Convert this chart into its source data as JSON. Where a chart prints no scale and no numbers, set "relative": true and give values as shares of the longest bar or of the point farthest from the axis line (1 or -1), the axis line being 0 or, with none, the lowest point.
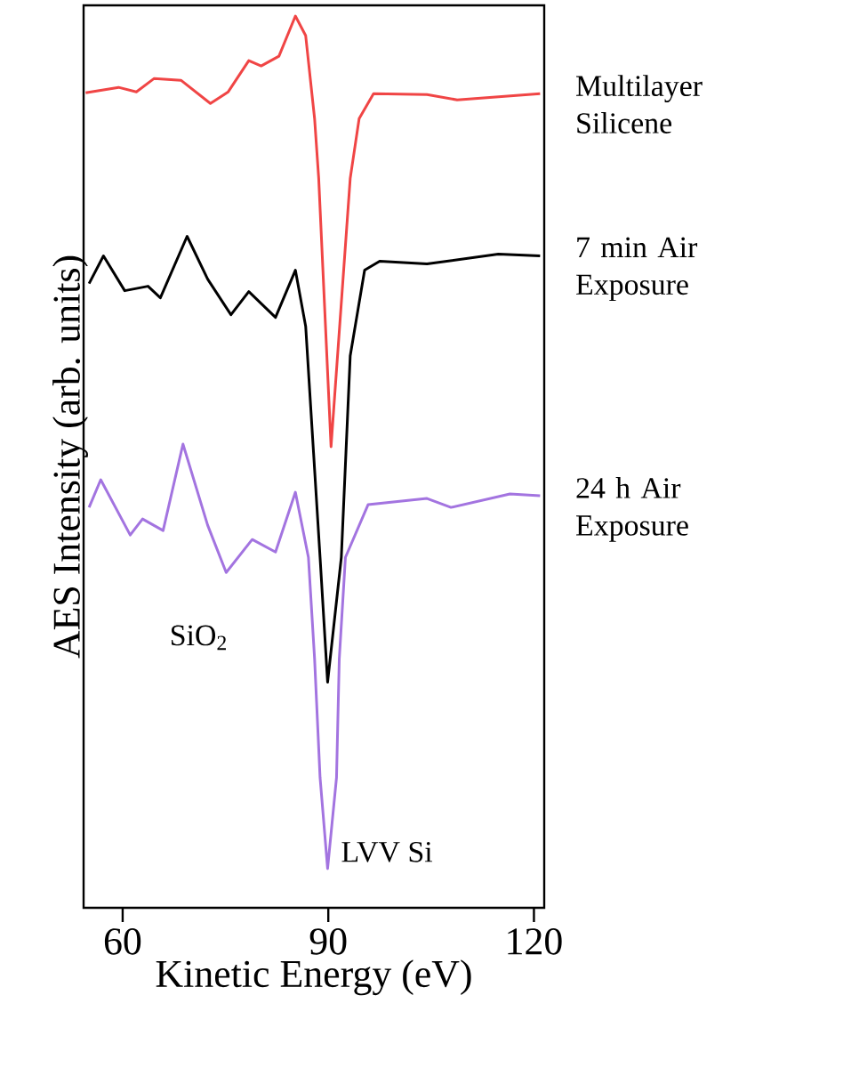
{
  "chart_data": {
    "type": "line",
    "relative": true,
    "xlabel": "Kinetic Energy (eV)",
    "ylabel": "AES Intensity (arb. units)",
    "xlim": [
      54.3,
      121.5
    ],
    "xticks": [
      60,
      90,
      120
    ],
    "series": [
      {
        "name": "Multilayer Silicene",
        "color": "#f04545",
        "x": [
          54.6,
          59.4,
          62.0,
          64.6,
          68.5,
          72.8,
          75.4,
          78.4,
          80.2,
          82.8,
          85.2,
          86.7,
          88.0,
          88.6,
          90.4,
          93.2,
          94.5,
          96.6,
          104.4,
          108.8,
          120.9
        ],
        "values": [
          0.914,
          0.92,
          0.915,
          0.93,
          0.928,
          0.902,
          0.915,
          0.95,
          0.944,
          0.955,
          1.0,
          0.978,
          0.885,
          0.818,
          0.517,
          0.818,
          0.885,
          0.913,
          0.912,
          0.906,
          0.913
        ]
      },
      {
        "name": "7 min Air Exposure",
        "color": "#000000",
        "x": [
          55.1,
          57.2,
          60.3,
          63.7,
          65.5,
          69.4,
          72.4,
          75.8,
          78.4,
          82.3,
          85.2,
          86.7,
          88.8,
          89.9,
          91.9,
          93.2,
          95.3,
          97.5,
          104.4,
          114.8,
          120.9
        ],
        "values": [
          0.7,
          0.731,
          0.692,
          0.697,
          0.684,
          0.753,
          0.705,
          0.665,
          0.691,
          0.662,
          0.715,
          0.652,
          0.393,
          0.253,
          0.393,
          0.619,
          0.715,
          0.725,
          0.722,
          0.733,
          0.731
        ]
      },
      {
        "name": "24 h Air Exposure",
        "color": "#a374e0",
        "x": [
          55.1,
          56.8,
          61.1,
          62.9,
          65.9,
          68.8,
          72.4,
          75.1,
          78.9,
          82.3,
          85.2,
          87.1,
          88.0,
          88.8,
          89.9,
          91.2,
          91.6,
          92.5,
          95.8,
          104.4,
          107.9,
          116.5,
          120.9
        ],
        "values": [
          0.449,
          0.48,
          0.418,
          0.436,
          0.423,
          0.52,
          0.429,
          0.376,
          0.413,
          0.399,
          0.466,
          0.393,
          0.279,
          0.146,
          0.044,
          0.146,
          0.279,
          0.393,
          0.452,
          0.459,
          0.449,
          0.464,
          0.462
        ]
      }
    ],
    "annotations": [
      "SiO$_{2}$",
      {
        "text": "LVV Si",
        "x": 89.9,
        "y": 0.044
      }
    ]
  }
}
